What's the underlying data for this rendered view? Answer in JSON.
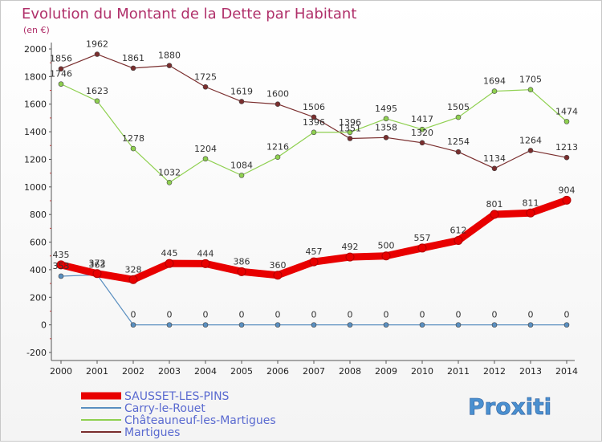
{
  "chart_data": {
    "type": "line",
    "title": "Evolution du Montant de la Dette par Habitant",
    "subtitle": "(en €)",
    "x": [
      "2000",
      "2001",
      "2002",
      "2003",
      "2004",
      "2005",
      "2006",
      "2007",
      "2008",
      "2009",
      "2010",
      "2011",
      "2012",
      "2013",
      "2014"
    ],
    "ylim": [
      -200,
      2000
    ],
    "yticks": [
      -200,
      0,
      200,
      400,
      600,
      800,
      1000,
      1200,
      1400,
      1600,
      1800,
      2000
    ],
    "grid": false,
    "legend_position": "bottom-left",
    "series": [
      {
        "name": "SAUSSET-LES-PINS",
        "color": "#e80000",
        "values": [
          435,
          372,
          328,
          445,
          444,
          386,
          360,
          457,
          492,
          500,
          557,
          612,
          801,
          811,
          904
        ]
      },
      {
        "name": "Carry-le-Rouet",
        "color": "#5a8fc0",
        "values": [
          353,
          363,
          0,
          0,
          0,
          0,
          0,
          0,
          0,
          0,
          0,
          0,
          0,
          0,
          0
        ]
      },
      {
        "name": "Châteauneuf-les-Martigues",
        "color": "#8fd050",
        "values": [
          1746,
          1623,
          1278,
          1032,
          1204,
          1084,
          1216,
          1396,
          1396,
          1495,
          1417,
          1505,
          1694,
          1705,
          1474
        ]
      },
      {
        "name": "Martigues",
        "color": "#7a2e2e",
        "values": [
          1856,
          1962,
          1861,
          1880,
          1725,
          1619,
          1600,
          1506,
          1351,
          1358,
          1320,
          1254,
          1134,
          1264,
          1213
        ]
      }
    ]
  },
  "logo": {
    "text": "Proxiti"
  }
}
